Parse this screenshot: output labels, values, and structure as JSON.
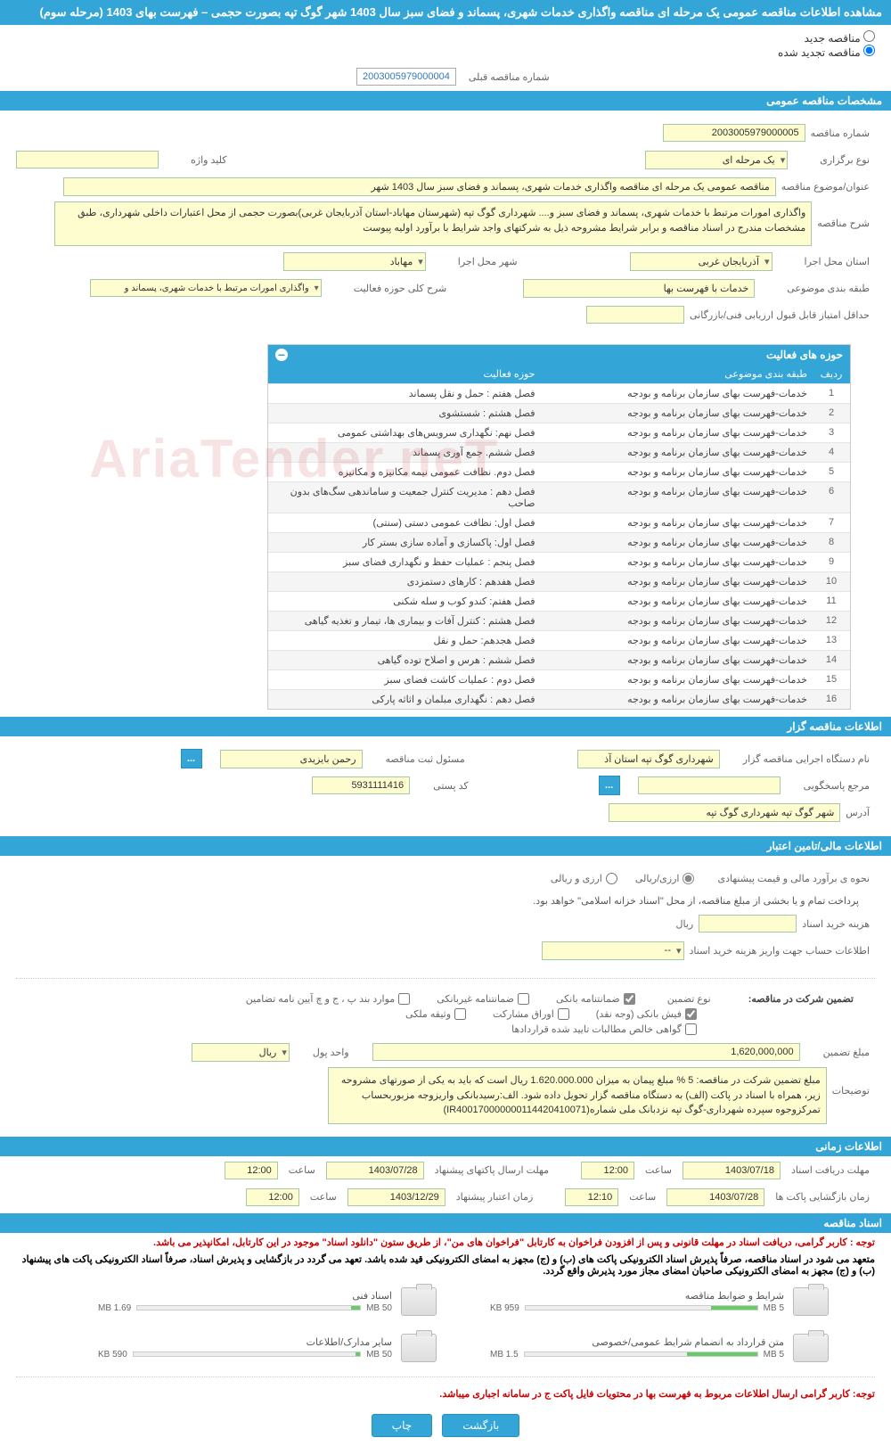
{
  "colors": {
    "primary": "#33a5d6",
    "field_bg": "#fdfdd0",
    "field_border": "#a8c8a8",
    "text": "#333333",
    "muted": "#666666",
    "red": "#cc0000"
  },
  "page_title": "مشاهده اطلاعات مناقصه عمومی یک مرحله ای مناقصه واگذاری خدمات شهری، پسماند و فضای سبز سال 1403 شهر گوگ تپه بصورت حجمی – فهرست بهای 1403 (مرحله سوم)",
  "radios": {
    "new_label": "مناقصه جدید",
    "renewed_label": "مناقصه تجدید شده",
    "prev_num_label": "شماره مناقصه قبلی",
    "prev_num_value": "2003005979000004"
  },
  "sect_general": "مشخصات مناقصه عمومی",
  "general": {
    "tender_no_label": "شماره مناقصه",
    "tender_no": "2003005979000005",
    "type_label": "نوع برگزاری",
    "type": "یک مرحله ای",
    "keyword_label": "کلید واژه",
    "keyword": "",
    "subject_label": "عنوان/موضوع مناقصه",
    "subject": "مناقصه عمومی یک مرحله ای مناقصه واگذاری خدمات شهری، پسماند و فضای سبز سال 1403 شهر",
    "desc_label": "شرح مناقصه",
    "desc": "واگذاری امورات مرتبط با خدمات شهری، پسماند و فضای سبز و.... شهرداری گوگ تپه (شهرستان مهاباد-استان آذربایجان غربی)بصورت حجمی از محل اعتبارات داخلی شهرداری، طبق مشخصات مندرج در اسناد مناقصه و برابر شرایط مشروحه ذیل به شرکتهای واجد شرایط با برآورد اولیه پیوست",
    "province_label": "استان محل اجرا",
    "province": "آذربایجان غربی",
    "city_label": "شهر محل اجرا",
    "city": "مهاباد",
    "class_label": "طبقه بندی موضوعی",
    "class": "خدمات با فهرست بها",
    "scope_label": "شرح کلی حوزه فعالیت",
    "scope": "واگذاری امورات مرتبط با خدمات شهری، پسماند و",
    "min_credit_label": "حداقل امتیاز قابل قبول ارزیابی فنی/بازرگانی",
    "min_credit": ""
  },
  "activity_table": {
    "title": "حوزه های فعالیت",
    "col_row": "ردیف",
    "col_class": "طبقه بندی موضوعی",
    "col_activity": "حوزه فعالیت",
    "rows": [
      {
        "n": "1",
        "c": "خدمات-فهرست بهای سازمان برنامه و بودجه",
        "a": "فصل هفتم : حمل و نقل پسماند"
      },
      {
        "n": "2",
        "c": "خدمات-فهرست بهای سازمان برنامه و بودجه",
        "a": "فصل هشتم : شستشوی"
      },
      {
        "n": "3",
        "c": "خدمات-فهرست بهای سازمان برنامه و بودجه",
        "a": "فصل نهم: نگهداری سرویس‌های بهداشتی عمومی"
      },
      {
        "n": "4",
        "c": "خدمات-فهرست بهای سازمان برنامه و بودجه",
        "a": "فصل ششم. جمع آوری پسماند"
      },
      {
        "n": "5",
        "c": "خدمات-فهرست بهای سازمان برنامه و بودجه",
        "a": "فصل دوم. نظافت عمومی نیمه مکانیزه و مکانیزه"
      },
      {
        "n": "6",
        "c": "خدمات-فهرست بهای سازمان برنامه و بودجه",
        "a": "فصل دهم : مدیریت کنترل جمعیت و ساماندهی سگ‌های بدون صاحب"
      },
      {
        "n": "7",
        "c": "خدمات-فهرست بهای سازمان برنامه و بودجه",
        "a": "فصل اول: نظافت عمومی دستی (سنتی)"
      },
      {
        "n": "8",
        "c": "خدمات-فهرست بهای سازمان برنامه و بودجه",
        "a": "فصل اول:  پاکسازی و آماده سازی بستر کار"
      },
      {
        "n": "9",
        "c": "خدمات-فهرست بهای سازمان برنامه و بودجه",
        "a": "فصل پنجم : عملیات حفظ و نگهداری فضای سبز"
      },
      {
        "n": "10",
        "c": "خدمات-فهرست بهای سازمان برنامه و بودجه",
        "a": "فصل هفدهم : کارهای دستمزدی"
      },
      {
        "n": "11",
        "c": "خدمات-فهرست بهای سازمان برنامه و بودجه",
        "a": "فصل هفتم:  کندو کوب و سله شکنی"
      },
      {
        "n": "12",
        "c": "خدمات-فهرست بهای سازمان برنامه و بودجه",
        "a": "فصل هشتم : کنترل آفات و بیماری ها، تیمار و تغذیه گیاهی"
      },
      {
        "n": "13",
        "c": "خدمات-فهرست بهای سازمان برنامه و بودجه",
        "a": "فصل هجدهم: حمل و نقل"
      },
      {
        "n": "14",
        "c": "خدمات-فهرست بهای سازمان برنامه و بودجه",
        "a": "فصل ششم : هرس و اصلاح توده گیاهی"
      },
      {
        "n": "15",
        "c": "خدمات-فهرست بهای سازمان برنامه و بودجه",
        "a": "فصل دوم : عملیات کاشت فضای سبز"
      },
      {
        "n": "16",
        "c": "خدمات-فهرست بهای سازمان برنامه و بودجه",
        "a": "فصل دهم : نگهداری مبلمان و اثاثه پارکی"
      }
    ]
  },
  "sect_holder": "اطلاعات مناقصه گزار",
  "holder": {
    "org_label": "نام دستگاه اجرایی مناقصه گزار",
    "org": "شهرداری گوگ تپه استان آذ",
    "reg_label": "مسئول ثبت مناقصه",
    "reg": "رحمن بایزیدی",
    "resp_label": "مرجع پاسخگویی",
    "resp": "",
    "postal_label": "کد پستی",
    "postal": "5931111416",
    "addr_label": "آدرس",
    "addr": "شهر گوگ تپه شهرداری گوگ تپه"
  },
  "sect_finance": "اطلاعات مالی/تامین اعتبار",
  "finance": {
    "est_label": "نحوه ی برآورد مالی و قیمت پیشنهادی",
    "opt_rial": "ارزی/ریالی",
    "opt_fx": "ارزی و ریالی",
    "note": "پرداخت تمام و یا بخشی از مبلغ مناقصه، از محل \"اسناد خزانه اسلامی\" خواهد بود.",
    "doc_cost_label": "هزینه خرید اسناد",
    "doc_cost": "",
    "rial": "ریال",
    "acct_label": "اطلاعات حساب جهت واریز هزینه خرید اسناد",
    "acct": "--"
  },
  "guarantee": {
    "title_label": "تضمین شرکت در مناقصه:",
    "type_label": "نوع تضمین",
    "c1": "ضمانتنامه بانکی",
    "c2": "ضمانتنامه غیربانکی",
    "c3": "موارد بند پ ، ج و چ آیین نامه تضامین",
    "c4": "فیش بانکی (وجه نقد)",
    "c5": "اوراق مشارکت",
    "c6": "وثیقه ملکی",
    "c7": "گواهی خالص مطالبات تایید شده قراردادها",
    "amount_label": "مبلغ تضمین",
    "amount": "1,620,000,000",
    "unit_label": "واحد پول",
    "unit": "ریال",
    "expl_label": "توضیحات",
    "expl": "مبلغ تضمین شرکت در مناقصه: 5 % مبلغ پیمان به میزان 1.620.000.000 ریال است که باید به یکی از صورتهای مشروحه زیر، همراه با اسناد در پاکت (الف) به دستگاه مناقصه گزار تحویل داده شود. الف:رسیدبانکی واریزوجه مزبوربحساب تمرکزوجوه سپرده شهرداری-گوگ تپه نزدبانک ملی شماره(IR400170000000114420410071)"
  },
  "sect_time": "اطلاعات زمانی",
  "time": {
    "rcv_label": "مهلت دریافت اسناد",
    "rcv_date": "1403/07/18",
    "h_label": "ساعت",
    "rcv_time": "12:00",
    "send_label": "مهلت ارسال پاکتهای پیشنهاد",
    "send_date": "1403/07/28",
    "send_time": "12:00",
    "open_label": "زمان بازگشایی پاکت ها",
    "open_date": "1403/07/28",
    "open_time": "12:10",
    "valid_label": "زمان اعتبار پیشنهاد",
    "valid_date": "1403/12/29",
    "valid_time": "12:00"
  },
  "sect_docs": "اسناد مناقصه",
  "docs_note1": "توجه : کاربر گرامی، دریافت اسناد در مهلت قانونی و پس از افزودن فراخوان به کارتابل \"فراخوان های من\"، از طریق ستون \"دانلود اسناد\" موجود در این کارتابل، امکانپذیر می باشد.",
  "docs_note2": "متعهد می شود در اسناد مناقصه، صرفاً پذیرش اسناد الکترونیکی پاکت های (ب) و (ج) مجهز به امضای الکترونیکی قید شده باشد. تعهد می گردد در بازگشایی و پذیرش اسناد، صرفاً اسناد الکترونیکی پاکت های پیشنهاد (ب) و (ج) مجهز به امضای الکترونیکی صاحبان امضای مجاز مورد پذیرش واقع گردد.",
  "docs": {
    "d1_title": "شرایط و ضوابط مناقصه",
    "d1_size": "959 KB",
    "d1_pct": 20,
    "d2_title": "اسناد فنی",
    "d2_size": "1.69 MB",
    "d2_pct": 34,
    "d3_title": "متن قرارداد به انضمام شرایط عمومی/خصوصی",
    "d3_size": "1.5 MB",
    "d3_pct": 30,
    "d4_title": "سایر مدارک/اطلاعات",
    "d4_size": "590 KB",
    "d4_pct": 12,
    "capacity": "5 MB",
    "cap2": "50 MB"
  },
  "footer_note": "توجه: کاربر گرامی ارسال اطلاعات مربوط به فهرست بها در محتویات فایل پاکت ج در سامانه اجباری میباشد.",
  "btn_back": "بازگشت",
  "btn_print": "چاپ",
  "watermark": "AriaTender.neT"
}
